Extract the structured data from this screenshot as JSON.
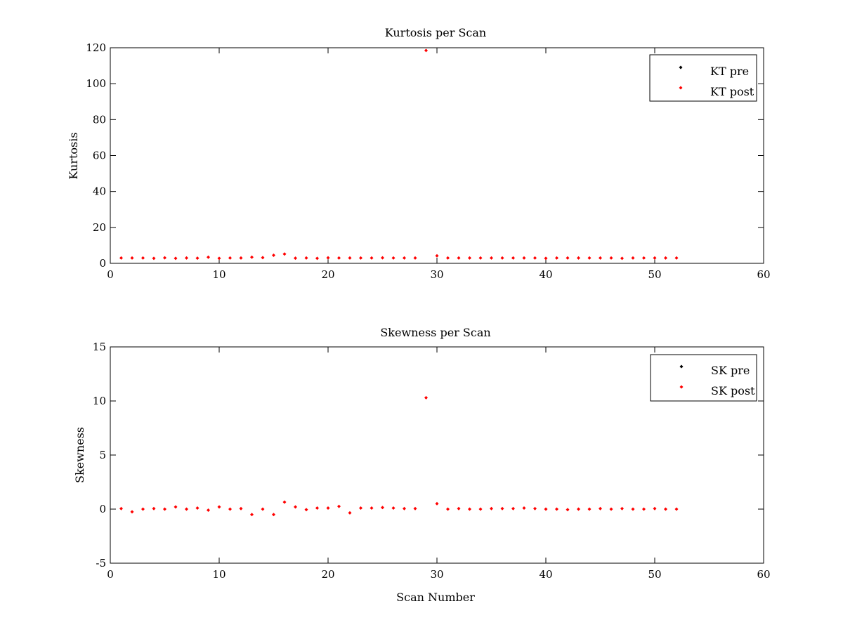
{
  "chart_data": [
    {
      "type": "scatter",
      "title": "Kurtosis per Scan",
      "xlabel": "",
      "ylabel": "Kurtosis",
      "xlim": [
        0,
        60
      ],
      "ylim": [
        0,
        120
      ],
      "xticks": [
        "0",
        "10",
        "20",
        "30",
        "40",
        "50",
        "60"
      ],
      "yticks": [
        "0",
        "20",
        "40",
        "60",
        "80",
        "100",
        "120"
      ],
      "grid": false,
      "legend_position": "top-right",
      "series": [
        {
          "name": "KT pre",
          "color": "#000000",
          "marker": "diamond",
          "x": [],
          "y": []
        },
        {
          "name": "KT post",
          "color": "#ff0000",
          "marker": "diamond",
          "x": [
            1,
            2,
            3,
            4,
            5,
            6,
            7,
            8,
            9,
            10,
            11,
            12,
            13,
            14,
            15,
            16,
            17,
            18,
            19,
            20,
            21,
            22,
            23,
            24,
            25,
            26,
            27,
            28,
            29,
            30,
            31,
            32,
            33,
            34,
            35,
            36,
            37,
            38,
            39,
            40,
            41,
            42,
            43,
            44,
            45,
            46,
            47,
            48,
            49,
            50,
            51,
            52
          ],
          "y": [
            3.0,
            3.0,
            3.0,
            2.8,
            3.1,
            2.8,
            3.0,
            2.9,
            3.4,
            2.8,
            3.0,
            3.0,
            3.4,
            3.2,
            4.5,
            5.2,
            2.9,
            3.0,
            2.8,
            3.1,
            3.0,
            3.0,
            3.0,
            3.0,
            3.1,
            3.0,
            3.0,
            3.0,
            118.5,
            4.2,
            3.0,
            3.0,
            3.0,
            3.0,
            3.0,
            3.0,
            3.0,
            3.0,
            3.0,
            2.8,
            3.0,
            3.0,
            3.0,
            3.0,
            3.0,
            3.0,
            2.8,
            3.0,
            3.0,
            3.0,
            3.0,
            3.0
          ]
        }
      ]
    },
    {
      "type": "scatter",
      "title": "Skewness per Scan",
      "xlabel": "Scan Number",
      "ylabel": "Skewness",
      "xlim": [
        0,
        60
      ],
      "ylim": [
        -5,
        15
      ],
      "xticks": [
        "0",
        "10",
        "20",
        "30",
        "40",
        "50",
        "60"
      ],
      "yticks": [
        "-5",
        "0",
        "5",
        "10",
        "15"
      ],
      "grid": false,
      "legend_position": "top-right",
      "series": [
        {
          "name": "SK pre",
          "color": "#000000",
          "marker": "diamond",
          "x": [],
          "y": []
        },
        {
          "name": "SK post",
          "color": "#ff0000",
          "marker": "diamond",
          "x": [
            1,
            2,
            3,
            4,
            5,
            6,
            7,
            8,
            9,
            10,
            11,
            12,
            13,
            14,
            15,
            16,
            17,
            18,
            19,
            20,
            21,
            22,
            23,
            24,
            25,
            26,
            27,
            28,
            29,
            30,
            31,
            32,
            33,
            34,
            35,
            36,
            37,
            38,
            39,
            40,
            41,
            42,
            43,
            44,
            45,
            46,
            47,
            48,
            49,
            50,
            51,
            52
          ],
          "y": [
            0.05,
            -0.25,
            0.0,
            0.05,
            0.0,
            0.2,
            0.0,
            0.1,
            -0.1,
            0.2,
            0.0,
            0.05,
            -0.5,
            0.0,
            -0.5,
            0.65,
            0.2,
            -0.05,
            0.1,
            0.1,
            0.25,
            -0.35,
            0.1,
            0.1,
            0.15,
            0.1,
            0.05,
            0.05,
            10.3,
            0.5,
            0.0,
            0.05,
            0.0,
            0.0,
            0.05,
            0.05,
            0.05,
            0.1,
            0.05,
            0.0,
            0.0,
            -0.05,
            0.0,
            0.0,
            0.05,
            0.0,
            0.05,
            0.0,
            0.0,
            0.05,
            0.0,
            0.0
          ]
        }
      ]
    }
  ]
}
